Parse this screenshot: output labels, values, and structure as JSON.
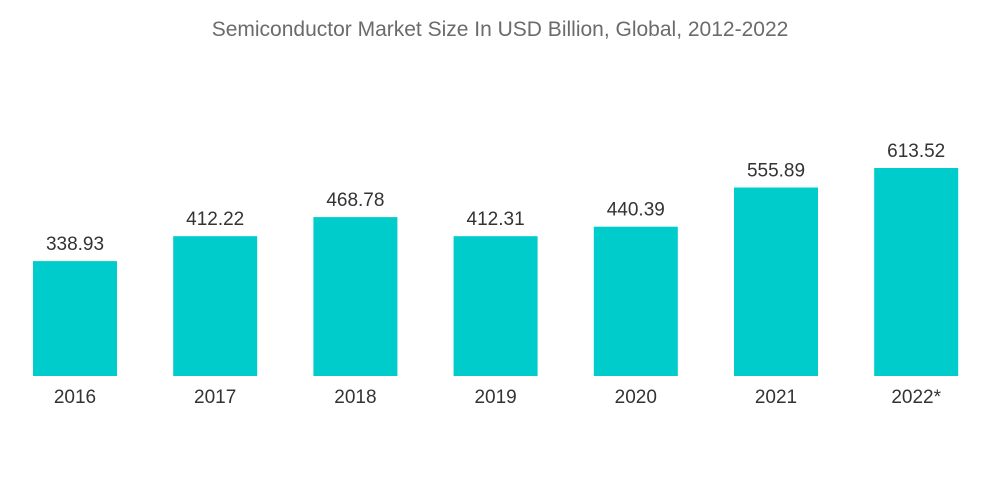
{
  "chart_data": {
    "type": "bar",
    "title": "Semiconductor Market Size In USD Billion, Global, 2012-2022",
    "xlabel": "",
    "ylabel": "",
    "categories": [
      "2016",
      "2017",
      "2018",
      "2019",
      "2020",
      "2021",
      "2022*"
    ],
    "values": [
      338.93,
      412.22,
      468.78,
      412.31,
      440.39,
      555.89,
      613.52
    ],
    "value_labels": [
      "338.93",
      "412.22",
      "468.78",
      "412.31",
      "440.39",
      "555.89",
      "613.52"
    ],
    "ylim": [
      0,
      613.52
    ],
    "grid": false,
    "legend": "none",
    "bar_color": "#00cccc"
  }
}
